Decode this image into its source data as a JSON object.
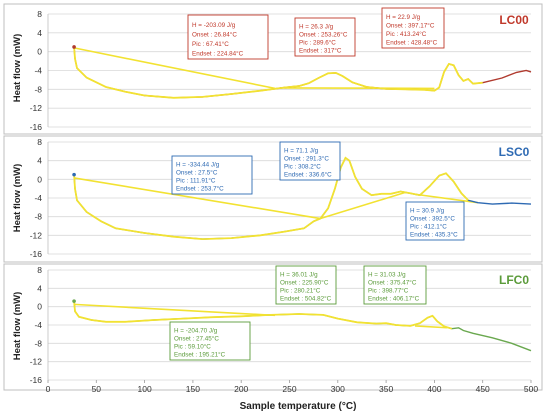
{
  "chart_data": {
    "type": "line",
    "xlabel": "Sample temperature (°C)",
    "x_ticks": [
      0,
      50,
      100,
      150,
      200,
      250,
      300,
      350,
      400,
      450,
      500
    ],
    "xlim": [
      0,
      500
    ],
    "panels": [
      {
        "id": "LC00",
        "label": "LC00",
        "label_color": "#c0392b",
        "ylabel": "Heat flow (mW)",
        "ylim": [
          -16,
          8
        ],
        "y_ticks": [
          8,
          4,
          0,
          -4,
          -8,
          -12,
          -16
        ],
        "overlay_color": "#f2e232",
        "series_color": "#b03a2e",
        "series": [
          [
            27,
            1.0
          ],
          [
            28,
            -1.5
          ],
          [
            30,
            -3.5
          ],
          [
            40,
            -5.5
          ],
          [
            60,
            -7.5
          ],
          [
            80,
            -8.5
          ],
          [
            100,
            -9.3
          ],
          [
            130,
            -9.8
          ],
          [
            160,
            -9.6
          ],
          [
            190,
            -9.0
          ],
          [
            220,
            -8.3
          ],
          [
            245,
            -7.6
          ],
          [
            260,
            -7.3
          ],
          [
            270,
            -6.7
          ],
          [
            280,
            -5.6
          ],
          [
            290,
            -4.6
          ],
          [
            298,
            -4.5
          ],
          [
            305,
            -5.2
          ],
          [
            315,
            -6.5
          ],
          [
            330,
            -7.5
          ],
          [
            350,
            -7.9
          ],
          [
            370,
            -8.0
          ],
          [
            390,
            -8.1
          ],
          [
            400,
            -8.3
          ],
          [
            405,
            -7.6
          ],
          [
            410,
            -4.3
          ],
          [
            415,
            -2.6
          ],
          [
            420,
            -2.9
          ],
          [
            425,
            -5.0
          ],
          [
            430,
            -6.2
          ],
          [
            435,
            -5.8
          ],
          [
            440,
            -6.8
          ],
          [
            450,
            -6.6
          ],
          [
            470,
            -5.6
          ],
          [
            485,
            -4.4
          ],
          [
            495,
            -4.0
          ],
          [
            500,
            -4.3
          ]
        ],
        "overlay_to": 450,
        "baselines": [
          [
            [
              27,
              0.8
            ],
            [
              235,
              -7.8
            ]
          ],
          [
            [
              240,
              -7.7
            ],
            [
              400,
              -7.8
            ]
          ]
        ],
        "annotations": [
          {
            "lines": [
              "H = -203.09 J/g",
              "Onset : 26.84°C",
              "Pic : 67.41°C",
              "Endset : 224.84°C"
            ]
          },
          {
            "lines": [
              "H = 26.3 J/g",
              "Onset : 253.26°C",
              "Pic : 289.6°C",
              "Endset : 317°C"
            ]
          },
          {
            "lines": [
              "H = 22.9 J/g",
              "Onset : 397.17°C",
              "Pic : 413.24°C",
              "Endset : 428.48°C"
            ]
          }
        ]
      },
      {
        "id": "LSC0",
        "label": "LSC0",
        "label_color": "#2e6ab3",
        "ylabel": "Heat flow (mW)",
        "ylim": [
          -16,
          8
        ],
        "y_ticks": [
          8,
          4,
          0,
          -4,
          -8,
          -12,
          -16
        ],
        "overlay_color": "#f2e232",
        "series_color": "#2e6ab3",
        "series": [
          [
            27,
            1.0
          ],
          [
            28,
            -2.0
          ],
          [
            30,
            -4.5
          ],
          [
            40,
            -7.0
          ],
          [
            55,
            -9.0
          ],
          [
            70,
            -10.5
          ],
          [
            100,
            -11.5
          ],
          [
            130,
            -12.3
          ],
          [
            160,
            -12.8
          ],
          [
            190,
            -12.6
          ],
          [
            220,
            -12.0
          ],
          [
            245,
            -11.2
          ],
          [
            265,
            -10.5
          ],
          [
            275,
            -9.0
          ],
          [
            282,
            -8.4
          ],
          [
            290,
            -6.2
          ],
          [
            297,
            -2.0
          ],
          [
            303,
            2.5
          ],
          [
            308,
            4.6
          ],
          [
            312,
            4.0
          ],
          [
            318,
            0.5
          ],
          [
            325,
            -2.0
          ],
          [
            335,
            -3.4
          ],
          [
            345,
            -3.1
          ],
          [
            355,
            -3.1
          ],
          [
            365,
            -2.6
          ],
          [
            375,
            -3.0
          ],
          [
            385,
            -3.4
          ],
          [
            395,
            -1.5
          ],
          [
            405,
            0.8
          ],
          [
            412,
            1.3
          ],
          [
            420,
            -0.5
          ],
          [
            428,
            -3.0
          ],
          [
            435,
            -4.5
          ],
          [
            445,
            -5.0
          ],
          [
            460,
            -5.3
          ],
          [
            480,
            -5.1
          ],
          [
            500,
            -5.3
          ]
        ],
        "overlay_to": 440,
        "baselines": [
          [
            [
              27,
              0.3
            ],
            [
              282,
              -8.4
            ]
          ],
          [
            [
              282,
              -8.4
            ],
            [
              370,
              -2.8
            ]
          ],
          [
            [
              380,
              -3.2
            ],
            [
              445,
              -5.0
            ]
          ]
        ],
        "annotations": [
          {
            "lines": [
              "H = -334.44 J/g",
              "Onset : 27.5°C",
              "Pic : 111.91°C",
              "Endset : 253.7°C"
            ]
          },
          {
            "lines": [
              "H = 71.1 J/g",
              "Onset : 291.3°C",
              "Pic : 308.2°C",
              "Endset : 336.6°C"
            ]
          },
          {
            "lines": [
              "H = 30.9 J/g",
              "Onset : 392.5°C",
              "Pic : 412.1°C",
              "Endset : 435.3°C"
            ]
          }
        ]
      },
      {
        "id": "LFC0",
        "label": "LFC0",
        "label_color": "#5b9b3a",
        "ylabel": "Heat flow (mW)",
        "ylim": [
          -16,
          8
        ],
        "y_ticks": [
          8,
          4,
          0,
          -4,
          -8,
          -12,
          -16
        ],
        "overlay_color": "#f2e232",
        "series_color": "#6aa84f",
        "series": [
          [
            27,
            1.2
          ],
          [
            28,
            -1.0
          ],
          [
            32,
            -2.2
          ],
          [
            45,
            -2.9
          ],
          [
            60,
            -3.3
          ],
          [
            80,
            -3.3
          ],
          [
            110,
            -2.9
          ],
          [
            140,
            -2.6
          ],
          [
            170,
            -2.3
          ],
          [
            200,
            -2.1
          ],
          [
            230,
            -1.8
          ],
          [
            260,
            -1.6
          ],
          [
            285,
            -1.8
          ],
          [
            300,
            -2.6
          ],
          [
            320,
            -3.4
          ],
          [
            340,
            -3.7
          ],
          [
            350,
            -3.6
          ],
          [
            360,
            -4.0
          ],
          [
            375,
            -4.2
          ],
          [
            385,
            -3.6
          ],
          [
            393,
            -2.4
          ],
          [
            398,
            -2.0
          ],
          [
            403,
            -3.2
          ],
          [
            410,
            -4.3
          ],
          [
            418,
            -4.8
          ],
          [
            425,
            -4.6
          ],
          [
            430,
            -5.2
          ],
          [
            440,
            -5.8
          ],
          [
            460,
            -6.8
          ],
          [
            480,
            -8.0
          ],
          [
            500,
            -9.6
          ]
        ],
        "overlay_to": 420,
        "baselines": [
          [
            [
              27,
              0.5
            ],
            [
              235,
              -1.9
            ]
          ],
          [
            [
              380,
              -4.2
            ],
            [
              413,
              -4.6
            ]
          ]
        ],
        "annotations": [
          {
            "lines": [
              "H = -204.70 J/g",
              "Onset : 27.45°C",
              "Pic : 59.10°C",
              "Endset : 195.21°C"
            ]
          },
          {
            "lines": [
              "H = 36.01 J/g",
              "Onset : 225.90°C",
              "Pic : 280.21°C",
              "Endset : 504.82°C"
            ]
          },
          {
            "lines": [
              "H = 31.03 J/g",
              "Onset : 375.47°C",
              "Pic : 398.77°C",
              "Endset : 406.17°C"
            ]
          }
        ]
      }
    ]
  }
}
